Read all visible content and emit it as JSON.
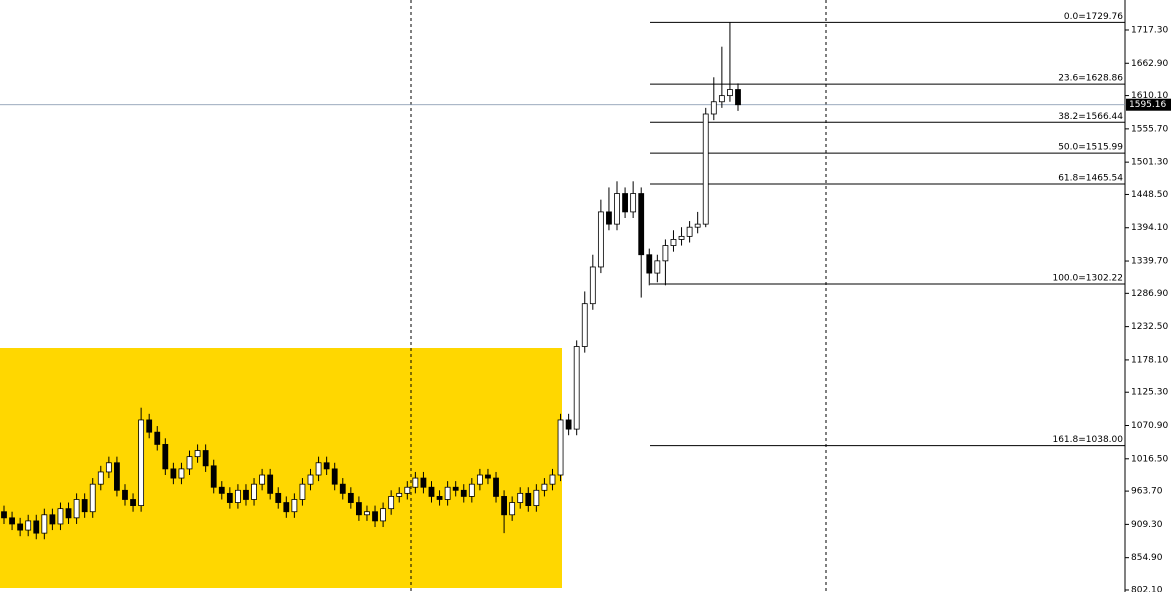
{
  "chart_data": {
    "type": "candlestick",
    "open": [
      930,
      920,
      910,
      900,
      915,
      895,
      925,
      910,
      935,
      920,
      950,
      930,
      975,
      995,
      1010,
      965,
      950,
      940,
      1080,
      1060,
      1040,
      1000,
      985,
      1000,
      1020,
      1030,
      1005,
      970,
      960,
      945,
      965,
      950,
      975,
      990,
      960,
      945,
      930,
      950,
      975,
      990,
      1010,
      1000,
      975,
      960,
      945,
      925,
      930,
      915,
      935,
      955,
      960,
      970,
      985,
      970,
      955,
      950,
      970,
      965,
      955,
      975,
      990,
      985,
      955,
      925,
      945,
      960,
      940,
      965,
      975,
      990,
      1080,
      1065,
      1200,
      1270,
      1330,
      1420,
      1400,
      1450,
      1420,
      1450,
      1350,
      1320,
      1340,
      1365,
      1375,
      1380,
      1395,
      1400,
      1580,
      1600,
      1610,
      1620
    ],
    "high": [
      940,
      930,
      920,
      925,
      925,
      935,
      935,
      945,
      945,
      960,
      960,
      985,
      1005,
      1020,
      1020,
      975,
      960,
      1100,
      1090,
      1070,
      1050,
      1010,
      1010,
      1030,
      1040,
      1040,
      1015,
      980,
      970,
      975,
      975,
      985,
      1000,
      1000,
      970,
      955,
      960,
      985,
      1000,
      1020,
      1020,
      1010,
      985,
      970,
      955,
      940,
      940,
      945,
      965,
      970,
      980,
      995,
      995,
      980,
      965,
      980,
      980,
      975,
      985,
      1000,
      1000,
      995,
      965,
      955,
      970,
      970,
      975,
      985,
      1000,
      1090,
      1090,
      1210,
      1290,
      1350,
      1440,
      1460,
      1470,
      1460,
      1470,
      1460,
      1360,
      1350,
      1375,
      1390,
      1395,
      1405,
      1420,
      1590,
      1640,
      1690,
      1729.76,
      1630
    ],
    "low": [
      910,
      900,
      890,
      890,
      885,
      885,
      900,
      900,
      910,
      910,
      920,
      920,
      965,
      985,
      955,
      940,
      930,
      930,
      1050,
      1030,
      990,
      975,
      975,
      990,
      1010,
      995,
      960,
      950,
      935,
      935,
      940,
      940,
      965,
      950,
      935,
      920,
      920,
      940,
      965,
      980,
      990,
      965,
      950,
      935,
      915,
      915,
      905,
      905,
      925,
      945,
      950,
      960,
      960,
      945,
      940,
      940,
      955,
      945,
      945,
      965,
      975,
      945,
      895,
      915,
      935,
      930,
      930,
      955,
      965,
      980,
      1055,
      1055,
      1190,
      1260,
      1320,
      1390,
      1390,
      1410,
      1410,
      1280,
      1300,
      1305,
      1300,
      1355,
      1365,
      1370,
      1385,
      1395,
      1570,
      1590,
      1600,
      1585
    ],
    "close": [
      920,
      910,
      900,
      915,
      895,
      925,
      910,
      935,
      920,
      950,
      930,
      975,
      995,
      1010,
      965,
      950,
      940,
      1080,
      1060,
      1040,
      1000,
      985,
      1000,
      1020,
      1030,
      1005,
      970,
      960,
      945,
      965,
      950,
      975,
      990,
      960,
      945,
      930,
      950,
      975,
      990,
      1010,
      1000,
      975,
      960,
      945,
      925,
      930,
      915,
      935,
      955,
      960,
      970,
      985,
      970,
      955,
      950,
      970,
      965,
      955,
      975,
      990,
      985,
      955,
      925,
      945,
      960,
      940,
      965,
      975,
      990,
      1080,
      1065,
      1200,
      1270,
      1330,
      1420,
      1400,
      1450,
      1420,
      1450,
      1350,
      1320,
      1340,
      1365,
      1375,
      1380,
      1395,
      1400,
      1580,
      1600,
      1610,
      1620,
      1595.16
    ],
    "ylim": [
      798.8,
      1766.3
    ],
    "yticks": [
      {
        "value": 1717.3,
        "label": "1717.30"
      },
      {
        "value": 1662.9,
        "label": "1662.90"
      },
      {
        "value": 1610.1,
        "label": "1610.10"
      },
      {
        "value": 1555.7,
        "label": "1555.70"
      },
      {
        "value": 1501.3,
        "label": "1501.30"
      },
      {
        "value": 1448.5,
        "label": "1448.50"
      },
      {
        "value": 1394.1,
        "label": "1394.10"
      },
      {
        "value": 1339.7,
        "label": "1339.70"
      },
      {
        "value": 1286.9,
        "label": "1286.90"
      },
      {
        "value": 1232.5,
        "label": "1232.50"
      },
      {
        "value": 1178.1,
        "label": "1178.10"
      },
      {
        "value": 1125.3,
        "label": "1125.30"
      },
      {
        "value": 1070.9,
        "label": "1070.90"
      },
      {
        "value": 1016.5,
        "label": "1016.50"
      },
      {
        "value": 963.7,
        "label": "963.70"
      },
      {
        "value": 909.3,
        "label": "909.30"
      },
      {
        "value": 854.9,
        "label": "854.90"
      },
      {
        "value": 802.1,
        "label": "802.10"
      }
    ],
    "fibonacci": [
      {
        "value": 1729.76,
        "label": "0.0=1729.76"
      },
      {
        "value": 1628.86,
        "label": "23.6=1628.86"
      },
      {
        "value": 1566.44,
        "label": "38.2=1566.44"
      },
      {
        "value": 1515.99,
        "label": "50.0=1515.99"
      },
      {
        "value": 1465.54,
        "label": "61.8=1465.54"
      },
      {
        "value": 1302.22,
        "label": "100.0=1302.22"
      },
      {
        "value": 1038.0,
        "label": "161.8=1038.00"
      }
    ],
    "current_price": 1595.16
  }
}
